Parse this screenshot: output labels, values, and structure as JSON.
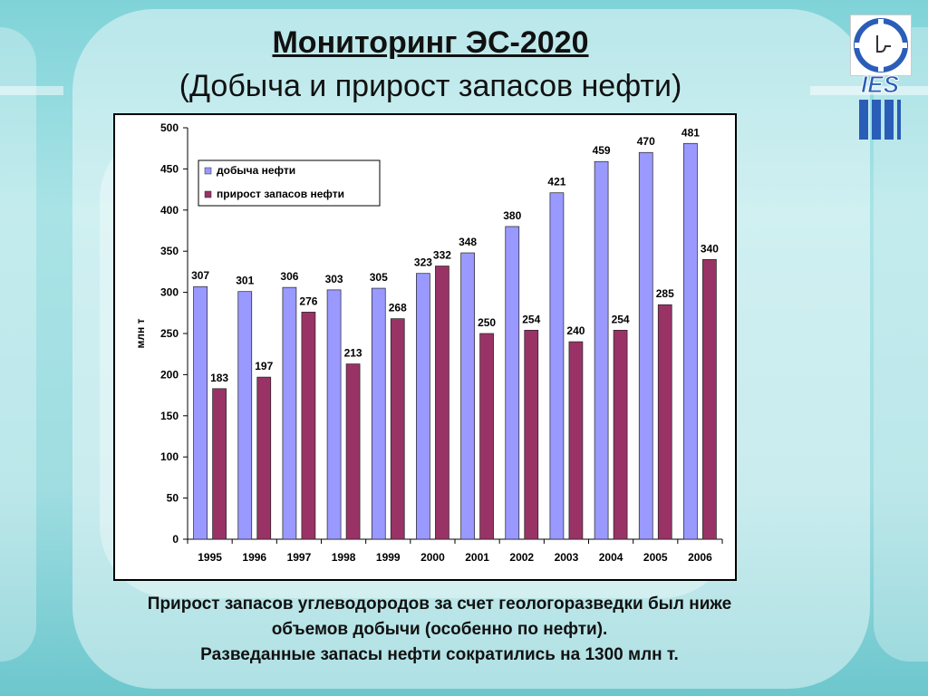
{
  "slide": {
    "title": "Мониторинг ЭС-2020",
    "subtitle": "(Добыча и прирост запасов нефти)",
    "logo_text": "IES",
    "notes": [
      "Прирост запасов углеводородов за счет геологоразведки был ниже",
      "объемов добычи (особенно по нефти).",
      "Разведанные запасы нефти сократились на 1300 млн т."
    ]
  },
  "chart_data": {
    "type": "bar",
    "title": "",
    "xlabel": "",
    "ylabel": "млн т",
    "ylim": [
      0,
      500
    ],
    "yticks": [
      0,
      50,
      100,
      150,
      200,
      250,
      300,
      350,
      400,
      450,
      500
    ],
    "categories": [
      "1995",
      "1996",
      "1997",
      "1998",
      "1999",
      "2000",
      "2001",
      "2002",
      "2003",
      "2004",
      "2005",
      "2006"
    ],
    "series": [
      {
        "name": "добыча нефти",
        "color": "#9999ff",
        "values": [
          307,
          301,
          306,
          303,
          305,
          323,
          348,
          380,
          421,
          459,
          470,
          481
        ]
      },
      {
        "name": "прирост запасов нефти",
        "color": "#993366",
        "values": [
          183,
          197,
          276,
          213,
          268,
          332,
          250,
          254,
          240,
          254,
          285,
          340
        ]
      }
    ],
    "legend_position": "top-left",
    "grid": false
  }
}
